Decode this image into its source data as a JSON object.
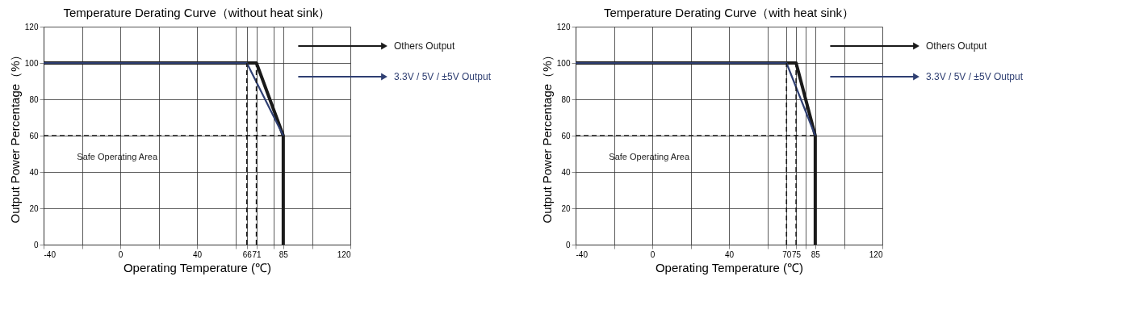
{
  "chart_data": [
    {
      "type": "line",
      "title": "Temperature Derating Curve（without heat sink）",
      "xlabel": "Operating Temperature (℃)",
      "ylabel": "Output Power Percentage（%）",
      "xlim": [
        -40,
        120
      ],
      "xticks": [
        -40,
        {
          "value": -20,
          "label": null
        },
        0,
        {
          "value": 20,
          "label": null
        },
        40,
        {
          "value": 60,
          "label": null
        },
        66,
        71,
        {
          "value": 80,
          "label": null
        },
        85,
        {
          "value": 100,
          "label": null
        },
        120
      ],
      "ylim": [
        0,
        120
      ],
      "yticks": [
        0,
        20,
        40,
        60,
        80,
        100,
        120
      ],
      "grid": true,
      "legend": "right",
      "series": [
        {
          "name": "Others Output",
          "color": "#1a1a1a",
          "x": [
            -40,
            71,
            85,
            85
          ],
          "values": [
            100,
            100,
            60,
            0
          ]
        },
        {
          "name": "3.3V / 5V / ±5V Output",
          "color": "#2f3f72",
          "x": [
            -40,
            66,
            85
          ],
          "values": [
            100,
            100,
            60
          ]
        },
        {
          "color": "#1a1a1a",
          "line_style": "dashed",
          "x": [
            -40,
            85
          ],
          "values": [
            60,
            60
          ]
        },
        {
          "color": "#1a1a1a",
          "line_style": "dashed",
          "x": [
            66,
            66
          ],
          "values": [
            0,
            100
          ]
        },
        {
          "color": "#1a1a1a",
          "line_style": "dashed",
          "x": [
            71,
            71
          ],
          "values": [
            0,
            100
          ]
        }
      ],
      "annotations": [
        "Safe Operating Area"
      ]
    },
    {
      "type": "line",
      "title": "Temperature Derating Curve（with heat sink）",
      "xlabel": "Operating Temperature (℃)",
      "ylabel": "Output Power Percentage（%）",
      "xlim": [
        -40,
        120
      ],
      "xticks": [
        -40,
        {
          "value": -20,
          "label": null
        },
        0,
        {
          "value": 20,
          "label": null
        },
        40,
        {
          "value": 60,
          "label": null
        },
        70,
        75,
        {
          "value": 80,
          "label": null
        },
        85,
        {
          "value": 100,
          "label": null
        },
        120
      ],
      "ylim": [
        0,
        120
      ],
      "yticks": [
        0,
        20,
        40,
        60,
        80,
        100,
        120
      ],
      "grid": true,
      "legend": "right",
      "series": [
        {
          "name": "Others Output",
          "color": "#1a1a1a",
          "x": [
            -40,
            75,
            85,
            85
          ],
          "values": [
            100,
            100,
            60,
            0
          ]
        },
        {
          "name": "3.3V / 5V / ±5V Output",
          "color": "#2f3f72",
          "x": [
            -40,
            70,
            85
          ],
          "values": [
            100,
            100,
            60
          ]
        },
        {
          "color": "#1a1a1a",
          "line_style": "dashed",
          "x": [
            -40,
            85
          ],
          "values": [
            60,
            60
          ]
        },
        {
          "color": "#1a1a1a",
          "line_style": "dashed",
          "x": [
            70,
            70
          ],
          "values": [
            0,
            100
          ]
        },
        {
          "color": "#1a1a1a",
          "line_style": "dashed",
          "x": [
            75,
            75
          ],
          "values": [
            0,
            100
          ]
        }
      ],
      "annotations": [
        "Safe Operating Area"
      ]
    }
  ]
}
